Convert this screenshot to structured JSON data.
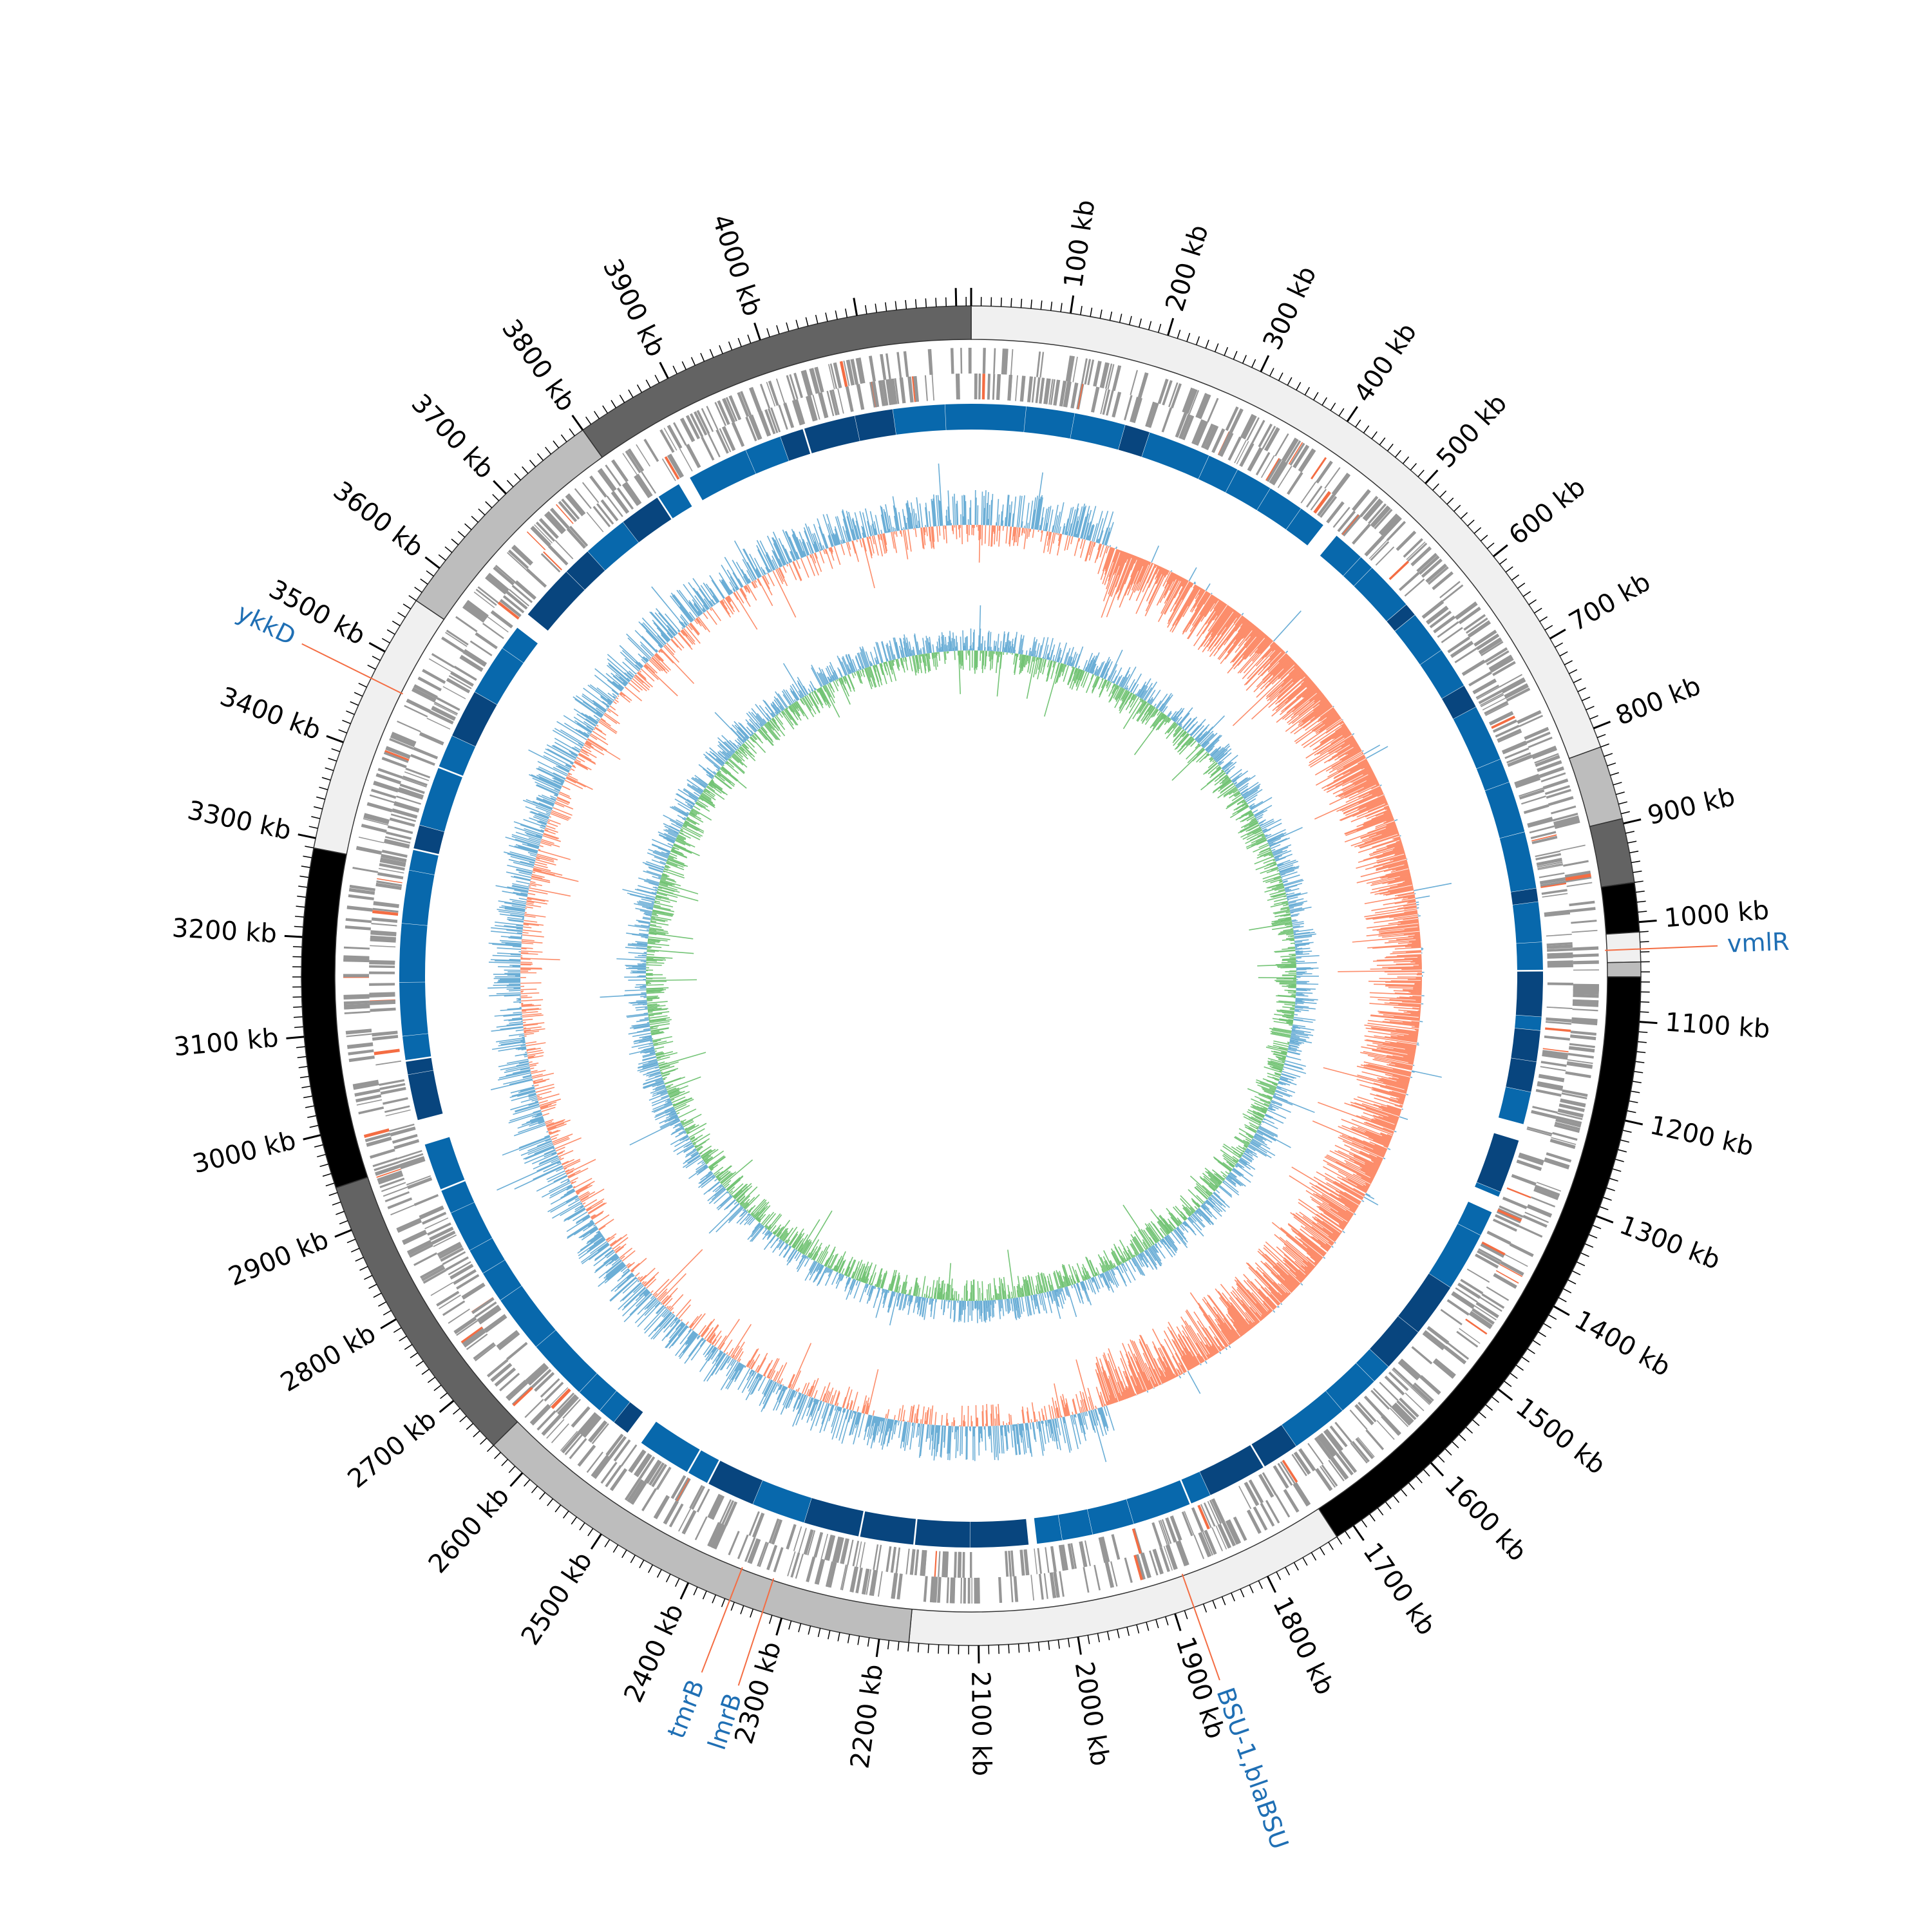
{
  "genome": {
    "length_kb": 4215
  },
  "ticks": {
    "labels": [
      "100 kb",
      "200 kb",
      "300 kb",
      "400 kb",
      "500 kb",
      "600 kb",
      "700 kb",
      "800 kb",
      "900 kb",
      "1000 kb",
      "1100 kb",
      "1200 kb",
      "1300 kb",
      "1400 kb",
      "1500 kb",
      "1600 kb",
      "1700 kb",
      "1800 kb",
      "1900 kb",
      "2000 kb",
      "2100 kb",
      "2200 kb",
      "2300 kb",
      "2400 kb",
      "2500 kb",
      "2600 kb",
      "2700 kb",
      "2800 kb",
      "2900 kb",
      "3000 kb",
      "3100 kb",
      "3200 kb",
      "3300 kb",
      "3400 kb",
      "3500 kb",
      "3600 kb",
      "3700 kb",
      "3800 kb",
      "3900 kb",
      "4000 kb"
    ],
    "values_kb": [
      100,
      200,
      300,
      400,
      500,
      600,
      700,
      800,
      900,
      1000,
      1100,
      1200,
      1300,
      1400,
      1500,
      1600,
      1700,
      1800,
      1900,
      2000,
      2100,
      2200,
      2300,
      2400,
      2500,
      2600,
      2700,
      2800,
      2900,
      3000,
      3100,
      3200,
      3300,
      3400,
      3500,
      3600,
      3700,
      3800,
      3900,
      4000
    ]
  },
  "contigs": [
    {
      "start": 0,
      "end": 820,
      "color": "#f0f0f0"
    },
    {
      "start": 820,
      "end": 895,
      "color": "#bdbdbd"
    },
    {
      "start": 895,
      "end": 960,
      "color": "#636363"
    },
    {
      "start": 960,
      "end": 1010,
      "color": "#000000"
    },
    {
      "start": 1010,
      "end": 1040,
      "color": "#f0f0f0"
    },
    {
      "start": 1040,
      "end": 1055,
      "color": "#bdbdbd"
    },
    {
      "start": 1055,
      "end": 1720,
      "color": "#000000"
    },
    {
      "start": 1720,
      "end": 2170,
      "color": "#f0f0f0"
    },
    {
      "start": 2170,
      "end": 2640,
      "color": "#bdbdbd"
    },
    {
      "start": 2640,
      "end": 2945,
      "color": "#636363"
    },
    {
      "start": 2945,
      "end": 3290,
      "color": "#000000"
    },
    {
      "start": 3290,
      "end": 3560,
      "color": "#f0f0f0"
    },
    {
      "start": 3560,
      "end": 3800,
      "color": "#bdbdbd"
    },
    {
      "start": 3800,
      "end": 4215,
      "color": "#636363"
    }
  ],
  "genes": [
    {
      "name": "vmlR",
      "position_kb": 1027
    },
    {
      "name": "BSU-1,blaBSU",
      "position_kb": 1880
    },
    {
      "name": "lmrB",
      "position_kb": 2320
    },
    {
      "name": "tmrB",
      "position_kb": 2355
    },
    {
      "name": "ykkD",
      "position_kb": 3470
    }
  ],
  "colors": {
    "gene_label": "#1f6fb4",
    "gene_line": "#f46d43",
    "cds_track": "#969696",
    "blast_light": "#0868ac",
    "blast_dark": "#08457e",
    "gc_content_pos": "#6baed6",
    "gc_content_neg": "#fc8d6b",
    "gc_skew_pos": "#6baed6",
    "gc_skew_neg": "#74c476"
  }
}
